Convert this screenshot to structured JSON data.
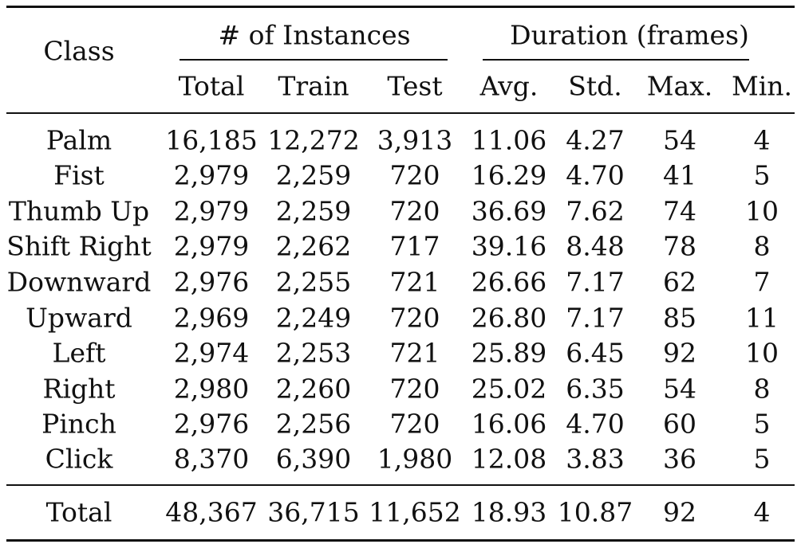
{
  "table": {
    "header": {
      "class": "Class",
      "instances_group": "# of Instances",
      "duration_group": "Duration (frames)",
      "columns": [
        "Total",
        "Train",
        "Test",
        "Avg.",
        "Std.",
        "Max.",
        "Min."
      ]
    },
    "rows": [
      [
        "Palm",
        "16,185",
        "12,272",
        "3,913",
        "11.06",
        "4.27",
        "54",
        "4"
      ],
      [
        "Fist",
        "2,979",
        "2,259",
        "720",
        "16.29",
        "4.70",
        "41",
        "5"
      ],
      [
        "Thumb Up",
        "2,979",
        "2,259",
        "720",
        "36.69",
        "7.62",
        "74",
        "10"
      ],
      [
        "Shift Right",
        "2,979",
        "2,262",
        "717",
        "39.16",
        "8.48",
        "78",
        "8"
      ],
      [
        "Downward",
        "2,976",
        "2,255",
        "721",
        "26.66",
        "7.17",
        "62",
        "7"
      ],
      [
        "Upward",
        "2,969",
        "2,249",
        "720",
        "26.80",
        "7.17",
        "85",
        "11"
      ],
      [
        "Left",
        "2,974",
        "2,253",
        "721",
        "25.89",
        "6.45",
        "92",
        "10"
      ],
      [
        "Right",
        "2,980",
        "2,260",
        "720",
        "25.02",
        "6.35",
        "54",
        "8"
      ],
      [
        "Pinch",
        "2,976",
        "2,256",
        "720",
        "16.06",
        "4.70",
        "60",
        "5"
      ],
      [
        "Click",
        "8,370",
        "6,390",
        "1,980",
        "12.08",
        "3.83",
        "36",
        "5"
      ]
    ],
    "total_row": [
      "Total",
      "48,367",
      "36,715",
      "11,652",
      "18.93",
      "10.87",
      "92",
      "4"
    ]
  }
}
